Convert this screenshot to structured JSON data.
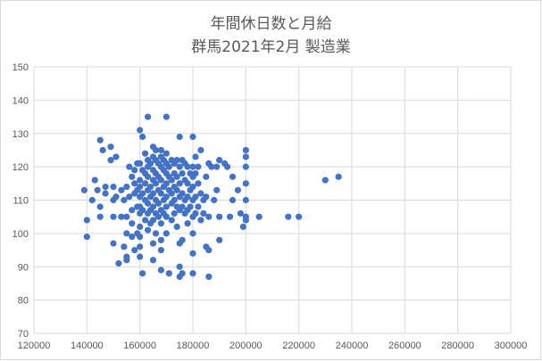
{
  "chart_data": {
    "type": "scatter",
    "title": "年間休日数と月給",
    "subtitle": "群馬2021年2月  製造業",
    "xlabel": "",
    "ylabel": "",
    "xlim": [
      120000,
      300000
    ],
    "ylim": [
      70,
      150
    ],
    "x_ticks": [
      "120000",
      "140000",
      "160000",
      "180000",
      "200000",
      "220000",
      "240000",
      "260000",
      "280000",
      "300000"
    ],
    "y_ticks": [
      "70",
      "80",
      "90",
      "100",
      "110",
      "120",
      "130",
      "140",
      "150"
    ],
    "grid": true,
    "legend": "none",
    "marker_color": "#4472c4",
    "series": [
      {
        "points": [
          [
            139000,
            113
          ],
          [
            140000,
            104
          ],
          [
            140000,
            99
          ],
          [
            142000,
            110
          ],
          [
            143000,
            116
          ],
          [
            144000,
            113
          ],
          [
            145000,
            108
          ],
          [
            145000,
            105
          ],
          [
            145000,
            128
          ],
          [
            146000,
            125
          ],
          [
            147000,
            114
          ],
          [
            147000,
            112
          ],
          [
            149000,
            126
          ],
          [
            149000,
            122
          ],
          [
            150000,
            114
          ],
          [
            150000,
            110
          ],
          [
            150000,
            105
          ],
          [
            150000,
            97
          ],
          [
            151000,
            123
          ],
          [
            151000,
            111
          ],
          [
            152000,
            91
          ],
          [
            153000,
            113
          ],
          [
            153000,
            105
          ],
          [
            154000,
            110
          ],
          [
            154000,
            96
          ],
          [
            155000,
            114
          ],
          [
            155000,
            105
          ],
          [
            155000,
            100
          ],
          [
            155000,
            93
          ],
          [
            155000,
            92
          ],
          [
            156000,
            120
          ],
          [
            156000,
            111
          ],
          [
            157000,
            117
          ],
          [
            157000,
            107
          ],
          [
            157000,
            103
          ],
          [
            157000,
            99
          ],
          [
            158000,
            115
          ],
          [
            158000,
            112
          ],
          [
            158000,
            119
          ],
          [
            158000,
            95
          ],
          [
            159000,
            121
          ],
          [
            159000,
            113
          ],
          [
            159000,
            108
          ],
          [
            159000,
            100
          ],
          [
            160000,
            131
          ],
          [
            160000,
            121
          ],
          [
            160000,
            116
          ],
          [
            160000,
            114
          ],
          [
            160000,
            111
          ],
          [
            160000,
            108
          ],
          [
            160000,
            106
          ],
          [
            160000,
            102
          ],
          [
            160000,
            99
          ],
          [
            160000,
            96
          ],
          [
            160000,
            93
          ],
          [
            161000,
            129
          ],
          [
            161000,
            119
          ],
          [
            161000,
            112
          ],
          [
            161000,
            107
          ],
          [
            161000,
            88
          ],
          [
            162000,
            124
          ],
          [
            162000,
            118
          ],
          [
            162000,
            115
          ],
          [
            162000,
            110
          ],
          [
            162000,
            104
          ],
          [
            163000,
            135
          ],
          [
            163000,
            122
          ],
          [
            163000,
            120
          ],
          [
            163000,
            117
          ],
          [
            163000,
            113
          ],
          [
            163000,
            109
          ],
          [
            163000,
            106
          ],
          [
            163000,
            101
          ],
          [
            164000,
            121
          ],
          [
            164000,
            114
          ],
          [
            164000,
            111
          ],
          [
            164000,
            107
          ],
          [
            164000,
            103
          ],
          [
            165000,
            126
          ],
          [
            165000,
            123
          ],
          [
            165000,
            119
          ],
          [
            165000,
            116
          ],
          [
            165000,
            112
          ],
          [
            165000,
            108
          ],
          [
            165000,
            104
          ],
          [
            165000,
            97
          ],
          [
            165000,
            92
          ],
          [
            166000,
            125
          ],
          [
            166000,
            122
          ],
          [
            166000,
            118
          ],
          [
            166000,
            115
          ],
          [
            166000,
            110
          ],
          [
            166000,
            106
          ],
          [
            166000,
            100
          ],
          [
            167000,
            121
          ],
          [
            167000,
            117
          ],
          [
            167000,
            113
          ],
          [
            167000,
            109
          ],
          [
            167000,
            105
          ],
          [
            168000,
            125
          ],
          [
            168000,
            123
          ],
          [
            168000,
            120
          ],
          [
            168000,
            116
          ],
          [
            168000,
            112
          ],
          [
            168000,
            107
          ],
          [
            168000,
            103
          ],
          [
            168000,
            98
          ],
          [
            168000,
            95
          ],
          [
            168000,
            89
          ],
          [
            169000,
            122
          ],
          [
            169000,
            119
          ],
          [
            169000,
            114
          ],
          [
            169000,
            110
          ],
          [
            169000,
            106
          ],
          [
            170000,
            135
          ],
          [
            170000,
            124
          ],
          [
            170000,
            121
          ],
          [
            170000,
            118
          ],
          [
            170000,
            115
          ],
          [
            170000,
            111
          ],
          [
            170000,
            108
          ],
          [
            170000,
            105
          ],
          [
            170000,
            100
          ],
          [
            171000,
            120
          ],
          [
            171000,
            117
          ],
          [
            171000,
            113
          ],
          [
            171000,
            88
          ],
          [
            172000,
            122
          ],
          [
            172000,
            116
          ],
          [
            172000,
            112
          ],
          [
            172000,
            109
          ],
          [
            172000,
            104
          ],
          [
            173000,
            121
          ],
          [
            173000,
            118
          ],
          [
            173000,
            114
          ],
          [
            173000,
            110
          ],
          [
            173000,
            106
          ],
          [
            174000,
            122
          ],
          [
            174000,
            117
          ],
          [
            174000,
            113
          ],
          [
            174000,
            108
          ],
          [
            174000,
            102
          ],
          [
            175000,
            129
          ],
          [
            175000,
            120
          ],
          [
            175000,
            115
          ],
          [
            175000,
            111
          ],
          [
            175000,
            107
          ],
          [
            175000,
            97
          ],
          [
            175000,
            90
          ],
          [
            175000,
            87
          ],
          [
            176000,
            122
          ],
          [
            176000,
            118
          ],
          [
            176000,
            112
          ],
          [
            176000,
            108
          ],
          [
            176000,
            98
          ],
          [
            176000,
            88
          ],
          [
            177000,
            121
          ],
          [
            177000,
            116
          ],
          [
            177000,
            110
          ],
          [
            177000,
            106
          ],
          [
            178000,
            120
          ],
          [
            178000,
            115
          ],
          [
            178000,
            111
          ],
          [
            178000,
            107
          ],
          [
            178000,
            103
          ],
          [
            179000,
            118
          ],
          [
            179000,
            113
          ],
          [
            179000,
            108
          ],
          [
            180000,
            129
          ],
          [
            180000,
            120
          ],
          [
            180000,
            117
          ],
          [
            180000,
            114
          ],
          [
            180000,
            110
          ],
          [
            180000,
            105
          ],
          [
            180000,
            100
          ],
          [
            180000,
            94
          ],
          [
            180000,
            88
          ],
          [
            181000,
            123
          ],
          [
            181000,
            118
          ],
          [
            181000,
            111
          ],
          [
            181000,
            106
          ],
          [
            182000,
            120
          ],
          [
            182000,
            115
          ],
          [
            182000,
            108
          ],
          [
            183000,
            125
          ],
          [
            183000,
            112
          ],
          [
            183000,
            104
          ],
          [
            184000,
            110
          ],
          [
            184000,
            106
          ],
          [
            185000,
            117
          ],
          [
            185000,
            111
          ],
          [
            185000,
            96
          ],
          [
            186000,
            121
          ],
          [
            186000,
            105
          ],
          [
            186000,
            95
          ],
          [
            186000,
            87
          ],
          [
            187000,
            120
          ],
          [
            188000,
            110
          ],
          [
            189000,
            120
          ],
          [
            189000,
            113
          ],
          [
            190000,
            122
          ],
          [
            190000,
            105
          ],
          [
            190000,
            98
          ],
          [
            192000,
            121
          ],
          [
            193000,
            120
          ],
          [
            194000,
            105
          ],
          [
            195000,
            117
          ],
          [
            195000,
            110
          ],
          [
            197000,
            113
          ],
          [
            198000,
            106
          ],
          [
            199000,
            102
          ],
          [
            200000,
            125
          ],
          [
            200000,
            123
          ],
          [
            200000,
            120
          ],
          [
            200000,
            115
          ],
          [
            200000,
            110
          ],
          [
            200000,
            105
          ],
          [
            200000,
            104
          ],
          [
            205000,
            105
          ],
          [
            216000,
            105
          ],
          [
            220000,
            105
          ],
          [
            230000,
            116
          ],
          [
            235000,
            117
          ]
        ]
      }
    ]
  }
}
